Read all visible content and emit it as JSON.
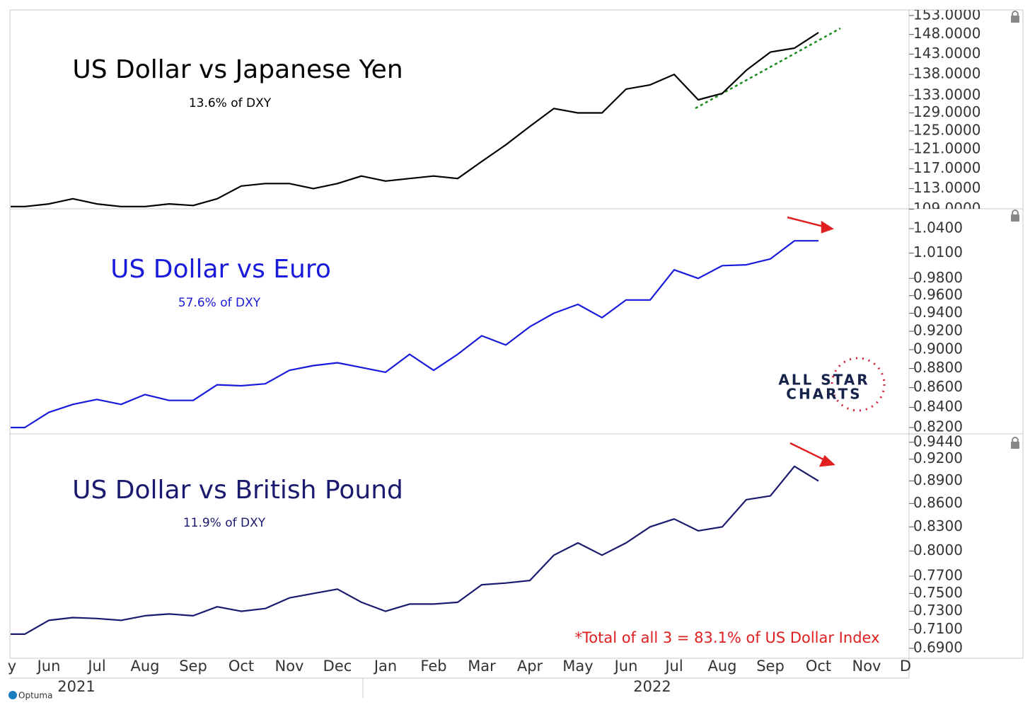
{
  "chart_data": [
    {
      "type": "line",
      "title": "US Dollar vs Japanese Yen",
      "subtitle": "13.6% of DXY",
      "log_scale": true,
      "ylim": [
        109.2,
        154.5
      ],
      "yticks": [
        {
          "value": 153,
          "label": "153.0000"
        },
        {
          "value": 148,
          "label": "148.0000"
        },
        {
          "value": 143,
          "label": "143.0000"
        },
        {
          "value": 138,
          "label": "138.0000"
        },
        {
          "value": 133,
          "label": "133.0000"
        },
        {
          "value": 129,
          "label": "129.0000"
        },
        {
          "value": 125,
          "label": "125.0000"
        },
        {
          "value": 121,
          "label": "121.0000"
        },
        {
          "value": 117,
          "label": "117.0000"
        },
        {
          "value": 113,
          "label": "113.0000"
        },
        {
          "value": 109,
          "label": "109.0000"
        }
      ],
      "series": [
        {
          "color": "#000000",
          "values": [
            109.5,
            109.5,
            110,
            111,
            110,
            109.5,
            109.5,
            110,
            109.7,
            111,
            113.5,
            114,
            114,
            113,
            114,
            115.5,
            114.5,
            115,
            115.5,
            115,
            118.5,
            122,
            126,
            130,
            129,
            129,
            134.5,
            135.5,
            138,
            132,
            133.5,
            139,
            143.5,
            144.5,
            148.5,
            null,
            null,
            null,
            null
          ]
        }
      ]
    },
    {
      "type": "line",
      "title": "US Dollar vs Euro",
      "subtitle": "57.6% of DXY",
      "log_scale": true,
      "ylim": [
        0.8145,
        1.064
      ],
      "yticks": [
        {
          "value": 1.04,
          "label": "1.0400"
        },
        {
          "value": 1.01,
          "label": "1.0100"
        },
        {
          "value": 0.98,
          "label": "0.9800"
        },
        {
          "value": 0.96,
          "label": "0.9600"
        },
        {
          "value": 0.94,
          "label": "0.9400"
        },
        {
          "value": 0.92,
          "label": "0.9200"
        },
        {
          "value": 0.9,
          "label": "0.9000"
        },
        {
          "value": 0.88,
          "label": "0.8800"
        },
        {
          "value": 0.86,
          "label": "0.8600"
        },
        {
          "value": 0.84,
          "label": "0.8400"
        },
        {
          "value": 0.82,
          "label": "0.8200"
        }
      ],
      "series": [
        {
          "color": "#1a1adb",
          "values": [
            0.82,
            0.82,
            0.835,
            0.843,
            0.848,
            0.843,
            0.853,
            0.847,
            0.847,
            0.863,
            0.862,
            0.864,
            0.878,
            0.883,
            0.886,
            0.881,
            0.876,
            0.895,
            0.878,
            0.895,
            0.915,
            0.905,
            0.925,
            0.94,
            0.95,
            0.935,
            0.955,
            0.955,
            0.99,
            0.98,
            0.995,
            0.996,
            1.003,
            1.025,
            1.025,
            null,
            null,
            null,
            null
          ]
        }
      ]
    },
    {
      "type": "line",
      "title": "US Dollar vs British Pound",
      "subtitle": "11.9% of DXY",
      "log_scale": true,
      "annotation": "*Total of all 3 = 83.1% of US Dollar Index",
      "ylim": [
        0.6796,
        0.955
      ],
      "yticks": [
        {
          "value": 0.944,
          "label": "0.9440"
        },
        {
          "value": 0.92,
          "label": "0.9200"
        },
        {
          "value": 0.89,
          "label": "0.8900"
        },
        {
          "value": 0.86,
          "label": "0.8600"
        },
        {
          "value": 0.83,
          "label": "0.8300"
        },
        {
          "value": 0.8,
          "label": "0.8000"
        },
        {
          "value": 0.77,
          "label": "0.7700"
        },
        {
          "value": 0.75,
          "label": "0.7500"
        },
        {
          "value": 0.73,
          "label": "0.7300"
        },
        {
          "value": 0.71,
          "label": "0.7100"
        },
        {
          "value": 0.69,
          "label": "0.6900"
        }
      ],
      "categories": [
        "y",
        null,
        "Jun",
        null,
        "Jul",
        null,
        "Aug",
        null,
        "Sep",
        null,
        "Oct",
        null,
        "Nov",
        null,
        "Dec",
        null,
        "Jan",
        null,
        "Feb",
        null,
        "Mar",
        null,
        "Apr",
        null,
        "May",
        null,
        "Jun",
        null,
        "Jul",
        null,
        "Aug",
        null,
        "Sep",
        null,
        "Oct",
        null,
        "Nov",
        null,
        "D"
      ],
      "years": [
        "2021",
        "2022"
      ],
      "series": [
        {
          "color": "#1a1a6e",
          "values": [
            0.705,
            0.705,
            0.72,
            0.723,
            0.722,
            0.72,
            0.725,
            0.727,
            0.725,
            0.735,
            0.73,
            0.733,
            0.745,
            0.75,
            0.755,
            0.74,
            0.73,
            0.738,
            0.738,
            0.74,
            0.76,
            0.762,
            0.765,
            0.795,
            0.81,
            0.795,
            0.81,
            0.83,
            0.84,
            0.825,
            0.83,
            0.865,
            0.87,
            0.91,
            0.89,
            null,
            null,
            null,
            null
          ]
        }
      ]
    }
  ],
  "branding": {
    "logo_line1": "ALL STAR",
    "logo_line2": "CHARTS",
    "vendor": "Optuma"
  }
}
